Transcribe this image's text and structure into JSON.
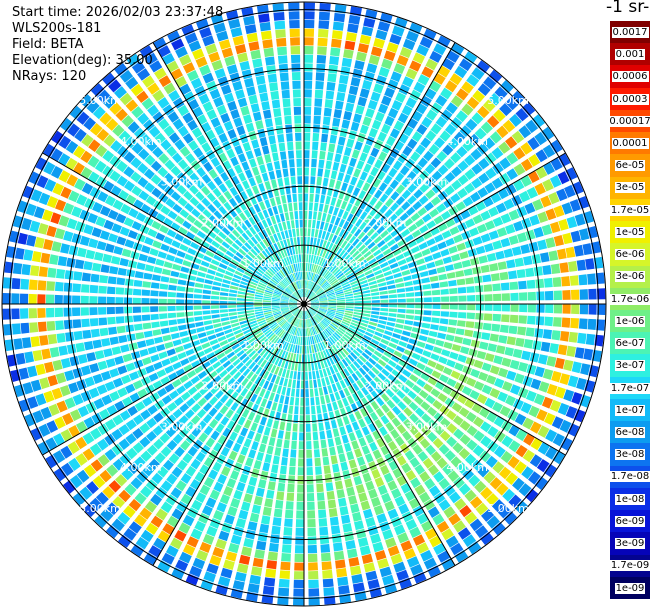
{
  "header": {
    "start_time": "Start time: 2026/02/03 23:37:48",
    "instrument": "WLS200s-181",
    "field": "Field: BETA",
    "elevation": "Elevation(deg): 35.00",
    "nrays": "NRays: 120"
  },
  "colorbar": {
    "units_label": "-1 sr-",
    "ticks": [
      "0.0017",
      "0.001",
      "0.0006",
      "0.0003",
      "0.00017",
      "0.0001",
      "6e-05",
      "3e-05",
      "1.7e-05",
      "1e-05",
      "6e-06",
      "3e-06",
      "1.7e-06",
      "1e-06",
      "6e-07",
      "3e-07",
      "1.7e-07",
      "1e-07",
      "6e-08",
      "3e-08",
      "1.7e-08",
      "1e-08",
      "6e-09",
      "3e-09",
      "1.7e-09",
      "1e-09"
    ],
    "colors": [
      "#800000",
      "#b00000",
      "#e00000",
      "#ff1a00",
      "#ff4a00",
      "#ff7a00",
      "#ff9a00",
      "#ffb400",
      "#ffd400",
      "#f0f000",
      "#d6f52a",
      "#b4f04a",
      "#90ec66",
      "#6ef088",
      "#4cf4b4",
      "#2ef0e0",
      "#1ed8f8",
      "#12baf8",
      "#0d9cf0",
      "#0d74f0",
      "#0d50ec",
      "#0a2ee6",
      "#0814d8",
      "#0604b8",
      "#040490",
      "#000060"
    ]
  },
  "chart_data": {
    "type": "heatmap",
    "projection": "polar-ppi",
    "field": "BETA",
    "elevation_deg": 35.0,
    "n_rays": 120,
    "azimuth_range_deg": [
      0,
      360
    ],
    "range_rings_km": [
      1,
      2,
      3,
      4,
      5
    ],
    "range_ring_labels": [
      "1.00km",
      "2.00km",
      "3.00km",
      "4.00km",
      "5.00km"
    ],
    "color_scale": "log",
    "value_range": [
      1e-09,
      0.0017
    ],
    "features": [
      {
        "description": "high-backscatter annulus",
        "range_km": [
          4.3,
          4.7
        ],
        "peak_value": 0.0003
      },
      {
        "description": "enhanced backscatter region, south-east",
        "range_km": [
          2.5,
          4.0
        ],
        "value": 1e-05
      }
    ],
    "background_value": 1e-07
  }
}
